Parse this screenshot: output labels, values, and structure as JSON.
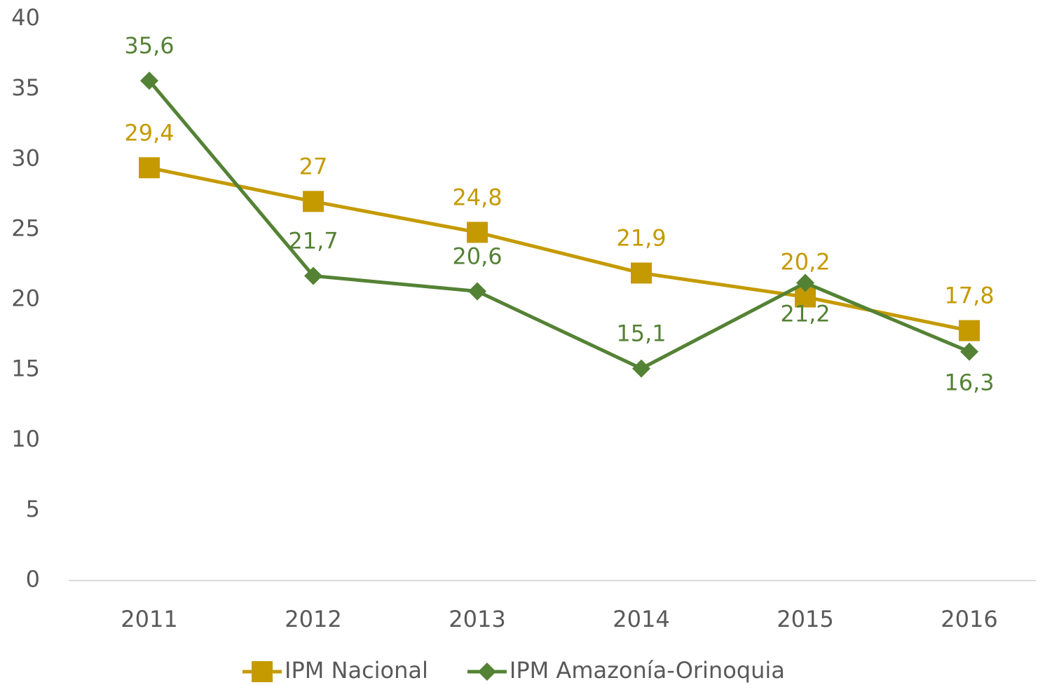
{
  "chart_data": {
    "type": "line",
    "categories": [
      "2011",
      "2012",
      "2013",
      "2014",
      "2015",
      "2016"
    ],
    "series": [
      {
        "name": "IPM Nacional",
        "color": "#c59a00",
        "marker": "square",
        "values": [
          29.4,
          27,
          24.8,
          21.9,
          20.2,
          17.8
        ],
        "value_labels": [
          "29,4",
          "27",
          "24,8",
          "21,9",
          "20,2",
          "17,8"
        ]
      },
      {
        "name": "IPM Amazonía-Orinoquia",
        "color": "#548235",
        "marker": "diamond",
        "values": [
          35.6,
          21.7,
          20.6,
          15.1,
          21.2,
          16.3
        ],
        "value_labels": [
          "35,6",
          "21,7",
          "20,6",
          "15,1",
          "21,2",
          "16,3"
        ]
      }
    ],
    "ylim": [
      0,
      40
    ],
    "yticks": [
      0,
      5,
      10,
      15,
      20,
      25,
      30,
      35,
      40
    ],
    "grid": false,
    "legend": "bottom"
  }
}
